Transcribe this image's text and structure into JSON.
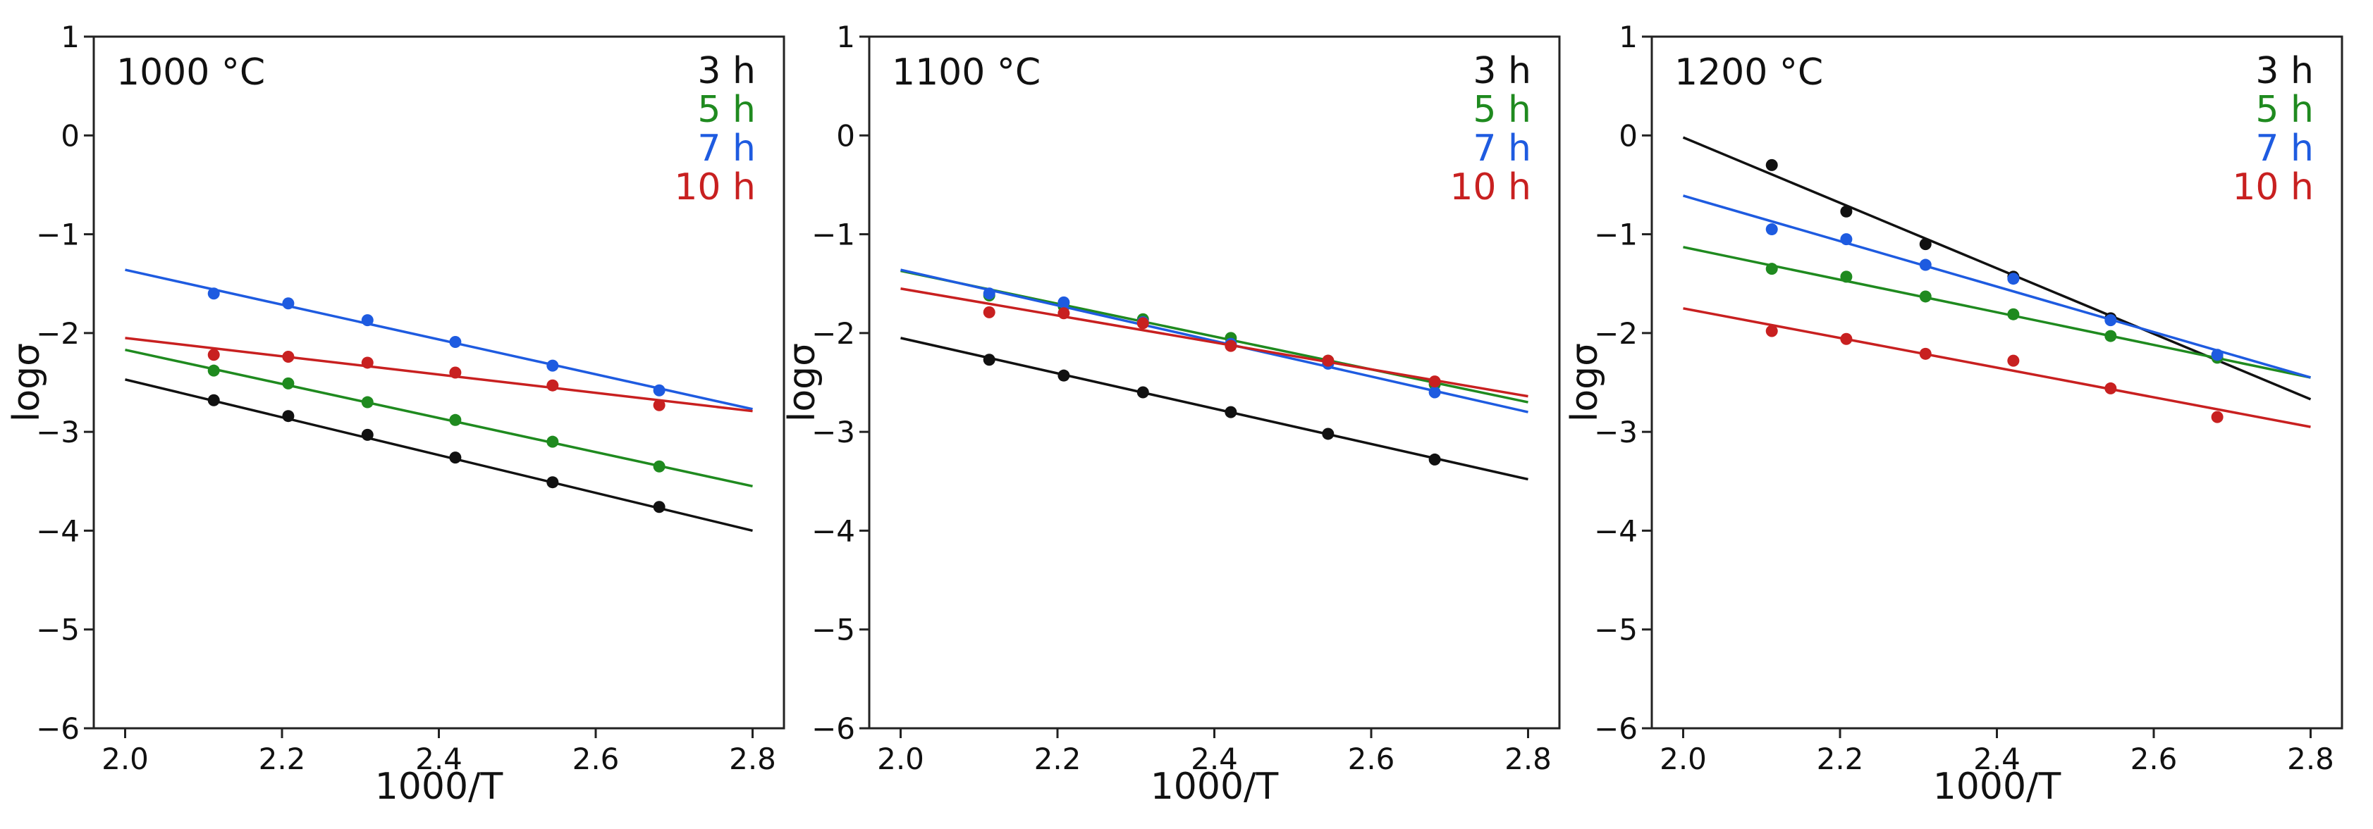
{
  "chart_data": [
    {
      "type": "scatter",
      "title": "1000 °C",
      "xlabel": "1000/T",
      "ylabel": "logσ",
      "xlim": [
        1.96,
        2.84
      ],
      "ylim": [
        -6,
        1
      ],
      "xticks": [
        2.0,
        2.2,
        2.4,
        2.6,
        2.8
      ],
      "xtick_labels": [
        "2.0",
        "2.2",
        "2.4",
        "2.6",
        "2.8"
      ],
      "yticks": [
        -6,
        -5,
        -4,
        -3,
        -2,
        -1,
        0,
        1
      ],
      "ytick_labels": [
        "−6",
        "−5",
        "−4",
        "−3",
        "−2",
        "−1",
        "0",
        "1"
      ],
      "legend_position": "top-right",
      "series": [
        {
          "name": "3 h",
          "color": "#111111",
          "x": [
            2.113,
            2.208,
            2.309,
            2.421,
            2.545,
            2.681
          ],
          "y": [
            -2.68,
            -2.84,
            -3.03,
            -3.26,
            -3.51,
            -3.76
          ],
          "fit_x": [
            2.0,
            2.8
          ],
          "fit_y": [
            -2.47,
            -4.0
          ]
        },
        {
          "name": "5 h",
          "color": "#1f8a1f",
          "x": [
            2.113,
            2.208,
            2.309,
            2.421,
            2.545,
            2.681
          ],
          "y": [
            -2.38,
            -2.51,
            -2.7,
            -2.88,
            -3.1,
            -3.35
          ],
          "fit_x": [
            2.0,
            2.8
          ],
          "fit_y": [
            -2.17,
            -3.55
          ]
        },
        {
          "name": "7 h",
          "color": "#1e5be0",
          "x": [
            2.113,
            2.208,
            2.309,
            2.421,
            2.545,
            2.681
          ],
          "y": [
            -1.6,
            -1.7,
            -1.87,
            -2.09,
            -2.33,
            -2.58
          ],
          "fit_x": [
            2.0,
            2.8
          ],
          "fit_y": [
            -1.36,
            -2.77
          ]
        },
        {
          "name": "10 h",
          "color": "#c82020",
          "x": [
            2.113,
            2.208,
            2.309,
            2.421,
            2.545,
            2.681
          ],
          "y": [
            -2.22,
            -2.24,
            -2.3,
            -2.4,
            -2.53,
            -2.73
          ],
          "fit_x": [
            2.0,
            2.8
          ],
          "fit_y": [
            -2.05,
            -2.79
          ]
        }
      ]
    },
    {
      "type": "scatter",
      "title": "1100 °C",
      "xlabel": "1000/T",
      "ylabel": "logσ",
      "xlim": [
        1.96,
        2.84
      ],
      "ylim": [
        -6,
        1
      ],
      "xticks": [
        2.0,
        2.2,
        2.4,
        2.6,
        2.8
      ],
      "xtick_labels": [
        "2.0",
        "2.2",
        "2.4",
        "2.6",
        "2.8"
      ],
      "yticks": [
        -6,
        -5,
        -4,
        -3,
        -2,
        -1,
        0,
        1
      ],
      "ytick_labels": [
        "−6",
        "−5",
        "−4",
        "−3",
        "−2",
        "−1",
        "0",
        "1"
      ],
      "legend_position": "top-right",
      "series": [
        {
          "name": "3 h",
          "color": "#111111",
          "x": [
            2.113,
            2.208,
            2.309,
            2.421,
            2.545,
            2.681
          ],
          "y": [
            -2.27,
            -2.43,
            -2.6,
            -2.8,
            -3.02,
            -3.28
          ],
          "fit_x": [
            2.0,
            2.8
          ],
          "fit_y": [
            -2.05,
            -3.48
          ]
        },
        {
          "name": "5 h",
          "color": "#1f8a1f",
          "x": [
            2.113,
            2.208,
            2.309,
            2.421,
            2.545,
            2.681
          ],
          "y": [
            -1.62,
            -1.73,
            -1.86,
            -2.05,
            -2.28,
            -2.52
          ],
          "fit_x": [
            2.0,
            2.8
          ],
          "fit_y": [
            -1.37,
            -2.7
          ]
        },
        {
          "name": "7 h",
          "color": "#1e5be0",
          "x": [
            2.113,
            2.208,
            2.309,
            2.421,
            2.545,
            2.681
          ],
          "y": [
            -1.6,
            -1.69,
            -1.89,
            -2.11,
            -2.31,
            -2.6
          ],
          "fit_x": [
            2.0,
            2.8
          ],
          "fit_y": [
            -1.36,
            -2.8
          ]
        },
        {
          "name": "10 h",
          "color": "#c82020",
          "x": [
            2.113,
            2.208,
            2.309,
            2.421,
            2.545,
            2.681
          ],
          "y": [
            -1.79,
            -1.8,
            -1.9,
            -2.13,
            -2.28,
            -2.49
          ],
          "fit_x": [
            2.0,
            2.8
          ],
          "fit_y": [
            -1.55,
            -2.64
          ]
        }
      ]
    },
    {
      "type": "scatter",
      "title": "1200 °C",
      "xlabel": "1000/T",
      "ylabel": "logσ",
      "xlim": [
        1.96,
        2.84
      ],
      "ylim": [
        -6,
        1
      ],
      "xticks": [
        2.0,
        2.2,
        2.4,
        2.6,
        2.8
      ],
      "xtick_labels": [
        "2.0",
        "2.2",
        "2.4",
        "2.6",
        "2.8"
      ],
      "yticks": [
        -6,
        -5,
        -4,
        -3,
        -2,
        -1,
        0,
        1
      ],
      "ytick_labels": [
        "−6",
        "−5",
        "−4",
        "−3",
        "−2",
        "−1",
        "0",
        "1"
      ],
      "legend_position": "top-right",
      "series": [
        {
          "name": "3 h",
          "color": "#111111",
          "x": [
            2.113,
            2.208,
            2.309,
            2.421,
            2.545
          ],
          "y": [
            -0.3,
            -0.77,
            -1.1,
            -1.43,
            -1.85
          ],
          "fit_x": [
            2.0,
            2.8
          ],
          "fit_y": [
            -0.02,
            -2.67
          ]
        },
        {
          "name": "5 h",
          "color": "#1f8a1f",
          "x": [
            2.113,
            2.208,
            2.309,
            2.421,
            2.545,
            2.681
          ],
          "y": [
            -1.35,
            -1.43,
            -1.63,
            -1.81,
            -2.03,
            -2.25
          ],
          "fit_x": [
            2.0,
            2.8
          ],
          "fit_y": [
            -1.13,
            -2.45
          ]
        },
        {
          "name": "7 h",
          "color": "#1e5be0",
          "x": [
            2.113,
            2.208,
            2.309,
            2.421,
            2.545,
            2.681
          ],
          "y": [
            -0.95,
            -1.05,
            -1.31,
            -1.45,
            -1.87,
            -2.22
          ],
          "fit_x": [
            2.0,
            2.8
          ],
          "fit_y": [
            -0.61,
            -2.45
          ]
        },
        {
          "name": "10 h",
          "color": "#c82020",
          "x": [
            2.113,
            2.208,
            2.309,
            2.421,
            2.545,
            2.681
          ],
          "y": [
            -1.98,
            -2.06,
            -2.21,
            -2.28,
            -2.56,
            -2.85
          ],
          "fit_x": [
            2.0,
            2.8
          ],
          "fit_y": [
            -1.75,
            -2.95
          ]
        }
      ]
    }
  ]
}
